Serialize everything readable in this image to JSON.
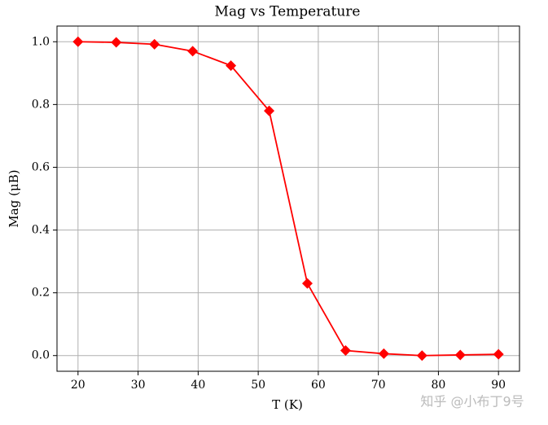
{
  "chart_data": {
    "type": "line",
    "title": "Mag vs Temperature",
    "xlabel": "T (K)",
    "ylabel": "Mag (μB)",
    "x": [
      20,
      26.36,
      32.73,
      39.09,
      45.45,
      51.82,
      58.18,
      64.55,
      70.91,
      77.27,
      83.64,
      90
    ],
    "series": [
      {
        "name": "Mag",
        "color": "#ff0000",
        "values": [
          1.0,
          0.998,
          0.992,
          0.97,
          0.924,
          0.78,
          0.23,
          0.016,
          0.006,
          0.0,
          0.002,
          0.004
        ]
      }
    ],
    "xlim": [
      16.5,
      93.5
    ],
    "ylim": [
      -0.05,
      1.05
    ],
    "xticks": [
      20,
      30,
      40,
      50,
      60,
      70,
      80,
      90
    ],
    "yticks": [
      {
        "value": 0,
        "label": "0.0"
      },
      0.2,
      0.4,
      0.6,
      0.8,
      {
        "value": 1,
        "label": "1.0"
      }
    ],
    "grid": true,
    "marker": "diamond",
    "watermark": "知乎 @小布丁9号"
  }
}
